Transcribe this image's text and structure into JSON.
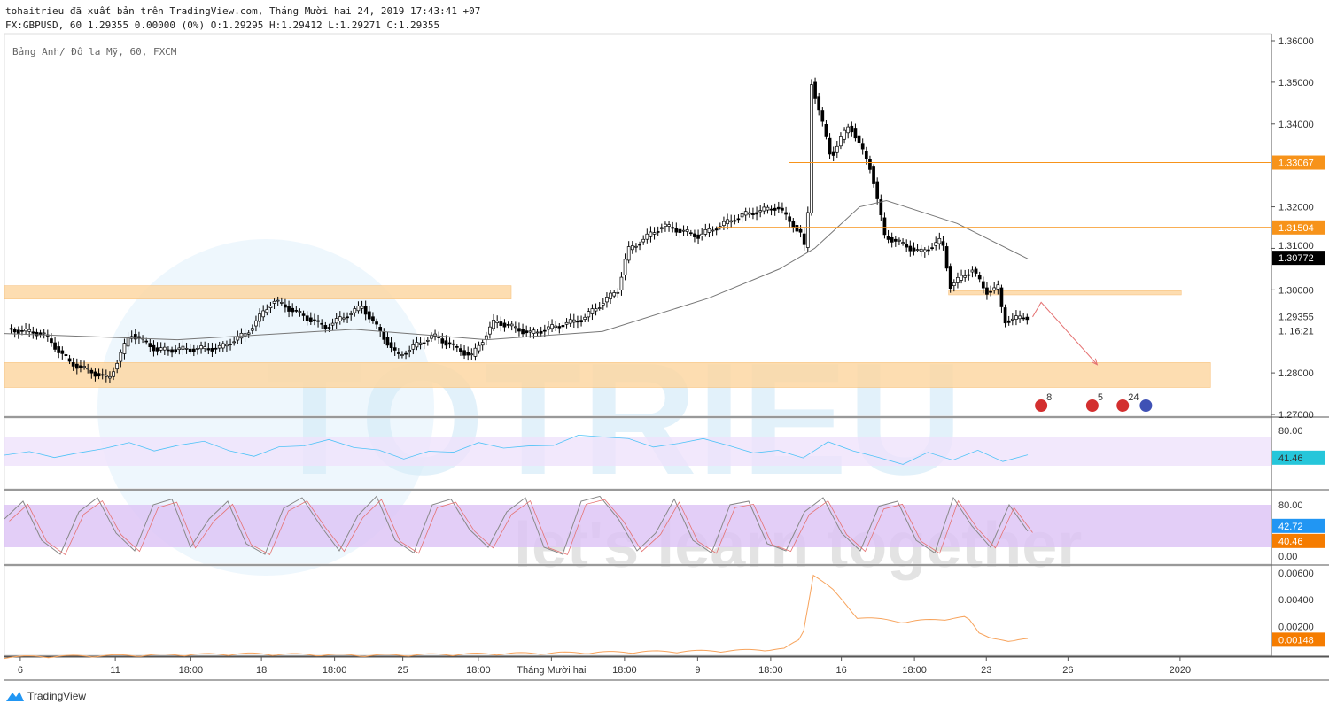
{
  "header": {
    "published": "tohaitrieu đã xuất bản trên TradingView.com, Tháng Mười hai 24, 2019 17:43:41 +07",
    "ohlc": "FX:GBPUSD, 60 1.29355 0.00000 (0%) O:1.29295 H:1.29412 L:1.29271 C:1.29355"
  },
  "chart_data": {
    "type": "candlestick",
    "symbol_legend": "Bảng Anh/ Đô la Mỹ, 60, FXCM",
    "ylim": [
      1.27,
      1.36
    ],
    "yticks": [
      "1.36000",
      "1.35000",
      "1.34000",
      "1.32000",
      "1.31000",
      "1.30000",
      "1.28000",
      "1.27000"
    ],
    "xlim_bars": [
      0,
      1040
    ],
    "xticks": [
      {
        "bar": 13,
        "label": "6"
      },
      {
        "bar": 91,
        "label": "11"
      },
      {
        "bar": 153,
        "label": "18:00"
      },
      {
        "bar": 211,
        "label": "18"
      },
      {
        "bar": 271,
        "label": "18:00"
      },
      {
        "bar": 327,
        "label": "25"
      },
      {
        "bar": 389,
        "label": "18:00"
      },
      {
        "bar": 449,
        "label": "Tháng Mười hai"
      },
      {
        "bar": 509,
        "label": "18:00"
      },
      {
        "bar": 569,
        "label": "9"
      },
      {
        "bar": 629,
        "label": "18:00"
      },
      {
        "bar": 687,
        "label": "16"
      },
      {
        "bar": 747,
        "label": "18:00"
      },
      {
        "bar": 806,
        "label": "23"
      },
      {
        "bar": 873,
        "label": "26"
      },
      {
        "bar": 965,
        "label": "2020"
      }
    ],
    "price_path": [
      [
        4,
        1.2905
      ],
      [
        33,
        1.2895
      ],
      [
        55,
        1.2825
      ],
      [
        87,
        1.2785
      ],
      [
        105,
        1.2895
      ],
      [
        127,
        1.2855
      ],
      [
        178,
        1.286
      ],
      [
        200,
        1.2895
      ],
      [
        222,
        1.2975
      ],
      [
        265,
        1.291
      ],
      [
        295,
        1.296
      ],
      [
        324,
        1.284
      ],
      [
        353,
        1.289
      ],
      [
        385,
        1.284
      ],
      [
        404,
        1.2925
      ],
      [
        433,
        1.2895
      ],
      [
        476,
        1.293
      ],
      [
        505,
        1.3
      ],
      [
        513,
        1.3095
      ],
      [
        542,
        1.3155
      ],
      [
        571,
        1.313
      ],
      [
        607,
        1.318
      ],
      [
        636,
        1.32
      ],
      [
        655,
        1.3135
      ],
      [
        660,
        1.308
      ],
      [
        664,
        1.35
      ],
      [
        680,
        1.332
      ],
      [
        695,
        1.34
      ],
      [
        713,
        1.329
      ],
      [
        724,
        1.313
      ],
      [
        753,
        1.309
      ],
      [
        771,
        1.312
      ],
      [
        778,
        1.301
      ],
      [
        796,
        1.305
      ],
      [
        807,
        1.2995
      ],
      [
        817,
        1.3005
      ],
      [
        822,
        1.2925
      ],
      [
        840,
        1.29355
      ]
    ],
    "moving_average": [
      [
        0,
        1.2895
      ],
      [
        142,
        1.288
      ],
      [
        287,
        1.2905
      ],
      [
        396,
        1.288
      ],
      [
        491,
        1.29
      ],
      [
        578,
        1.298
      ],
      [
        636,
        1.305
      ],
      [
        665,
        1.31
      ],
      [
        702,
        1.32
      ],
      [
        724,
        1.3215
      ],
      [
        782,
        1.316
      ],
      [
        840,
        1.3075
      ]
    ],
    "current_price_label": "1.29355",
    "countdown_label": "1. 16:21",
    "ma_label": "1.30772",
    "ma_value": 1.30772,
    "horizontal_lines": [
      {
        "price": 1.33067,
        "label": "1.33067",
        "from_bar": 644,
        "color": "#f7931a"
      },
      {
        "price": 1.31504,
        "label": "1.31504",
        "from_bar": 585,
        "color": "#f7931a"
      }
    ],
    "zones": [
      {
        "from": 1.2978,
        "to": 1.301,
        "bar_start": 0,
        "bar_end": 416
      },
      {
        "from": 1.2765,
        "to": 1.2825,
        "bar_start": 0,
        "bar_end": 990
      },
      {
        "from": 1.2988,
        "to": 1.2998,
        "bar_start": 775,
        "bar_end": 966
      }
    ],
    "projection": [
      [
        844,
        1.2935
      ],
      [
        851,
        1.297
      ],
      [
        897,
        1.282
      ]
    ],
    "events": [
      {
        "bar": 851,
        "label": "8",
        "flag": "US"
      },
      {
        "bar": 893,
        "label": "5",
        "flag": "US"
      },
      {
        "bar": 918,
        "label": "24",
        "flag": "US"
      },
      {
        "bar": 937,
        "label": "",
        "flag": "UK"
      }
    ],
    "rsi": {
      "ylim": [
        0,
        100
      ],
      "band": [
        30,
        70
      ],
      "tick": "80.00",
      "last": "41.46",
      "color": "#4fc3f7",
      "values": [
        45,
        50,
        42,
        48,
        55,
        62,
        52,
        58,
        66,
        50,
        45,
        55,
        60,
        65,
        58,
        50,
        42,
        48,
        52,
        60,
        58,
        55,
        62,
        70,
        74,
        65,
        60,
        58,
        72,
        55,
        52,
        48,
        45,
        60,
        55,
        38,
        36,
        45,
        42,
        48,
        40,
        41.46
      ]
    },
    "stoch": {
      "ylim": [
        0,
        100
      ],
      "band": [
        20,
        80
      ],
      "ticks": [
        "80.00",
        "0.00"
      ],
      "k_last": "42.72",
      "d_last": "40.46",
      "values": [
        60,
        85,
        30,
        10,
        70,
        90,
        40,
        15,
        80,
        88,
        20,
        60,
        85,
        25,
        10,
        75,
        90,
        50,
        15,
        65,
        92,
        30,
        12,
        80,
        88,
        45,
        20,
        70,
        90,
        20,
        10,
        85,
        92,
        60,
        15,
        40,
        88,
        30,
        12,
        80,
        85,
        25,
        15,
        70,
        90,
        40,
        15,
        78,
        85,
        30,
        12,
        90,
        50,
        20,
        80,
        42.72
      ]
    },
    "atr": {
      "ylim": [
        0,
        0.0062
      ],
      "ticks": [
        "0.00600",
        "0.00400",
        "0.00200"
      ],
      "last": "0.00148",
      "color": "#f7a35c",
      "values": [
        [
          0,
          0.0003
        ],
        [
          100,
          0.0004
        ],
        [
          200,
          0.0005
        ],
        [
          300,
          0.0004
        ],
        [
          400,
          0.0005
        ],
        [
          500,
          0.0006
        ],
        [
          600,
          0.0007
        ],
        [
          640,
          0.0008
        ],
        [
          655,
          0.0015
        ],
        [
          664,
          0.0055
        ],
        [
          680,
          0.0045
        ],
        [
          700,
          0.0028
        ],
        [
          740,
          0.0025
        ],
        [
          790,
          0.0028
        ],
        [
          800,
          0.0018
        ],
        [
          825,
          0.0012
        ],
        [
          840,
          0.00148
        ]
      ]
    }
  },
  "watermark": {
    "logo_text": "TOTRIEU",
    "tagline": "let's learn together"
  },
  "footer": {
    "brand": "TradingView"
  },
  "colors": {
    "up": "#000",
    "zone": "#fdd8a4",
    "accent": "#f7931a",
    "rsi_band": "#efe2fb",
    "stoch_band": "#dcc2f5"
  }
}
